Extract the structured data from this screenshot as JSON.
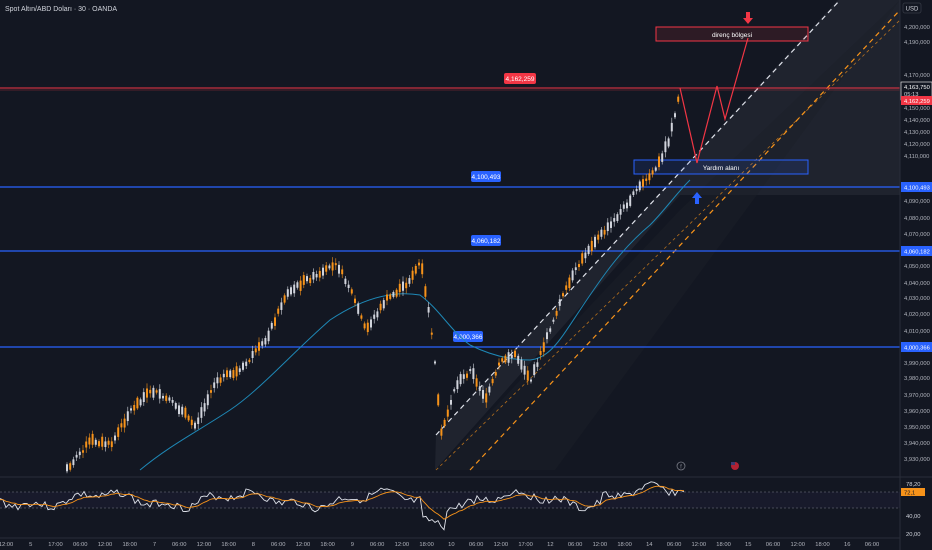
{
  "header": {
    "symbol_title": "Spot Altın/ABD Doları · 30 · OANDA",
    "currency_button": "USD"
  },
  "price_axis": {
    "ticks": [
      "4,200,000",
      "4,190,000",
      "4,170,000",
      "4,160,000",
      "4,150,000",
      "4,140,000",
      "4,130,000",
      "4,120,000",
      "4,110,000",
      "4,090,000",
      "4,080,000",
      "4,070,000",
      "4,050,000",
      "4,040,000",
      "4,030,000",
      "4,020,000",
      "4,010,000",
      "3,990,000",
      "3,980,000",
      "3,970,000",
      "3,960,000",
      "3,950,000",
      "3,940,000",
      "3,930,000"
    ],
    "current_price": "4,163,750",
    "countdown": "05:13",
    "level_red": "4,162,259",
    "level_blue_1": "4,100,493",
    "level_blue_2": "4,060,182",
    "level_blue_3": "4,000,366"
  },
  "time_axis": {
    "ticks": [
      "12:00",
      "5",
      "17:00",
      "06:00",
      "12:00",
      "18:00",
      "7",
      "06:00",
      "12:00",
      "18:00",
      "8",
      "06:00",
      "12:00",
      "18:00",
      "9",
      "06:00",
      "12:00",
      "18:00",
      "10",
      "06:00",
      "12:00",
      "17:00",
      "12",
      "06:00",
      "12:00",
      "18:00",
      "14",
      "06:00",
      "12:00",
      "18:00",
      "15",
      "06:00",
      "12:00",
      "18:00",
      "16",
      "06:00"
    ]
  },
  "annotations": {
    "resistance_label": "direnç bölgesi",
    "support_label": "Yardım alanı",
    "level_tag_red": "4,162,259",
    "level_tag_blue_1": "4,100,493",
    "level_tag_blue_2": "4,060,182",
    "level_tag_blue_3": "4,000,366"
  },
  "indicator_axis": {
    "ticks": [
      "78,20",
      "40,00",
      "20,00"
    ],
    "value_1": "72,1"
  },
  "colors": {
    "background": "#131722",
    "candle_up": "#d1d4dc",
    "candle_down": "#f7931a",
    "red_level": "#f23645",
    "blue_level": "#2962ff",
    "ma_line": "#1e88b6",
    "channel_lower": "#f7931a",
    "channel_upper": "#e0e3eb",
    "rsi_line": "#e0e3eb",
    "rsi_ma": "#f7931a"
  },
  "chart_data": {
    "type": "candlestick",
    "title": "Spot Altın/ABD Doları · 30 · OANDA",
    "y_range": [
      3930,
      4205
    ],
    "horizontal_levels": [
      4162.259,
      4100.493,
      4060.182,
      4000.366
    ],
    "zones": [
      {
        "label": "direnç bölgesi",
        "from": 4188,
        "to": 4198
      },
      {
        "label": "Yardım alanı",
        "from": 4112,
        "to": 4120
      }
    ]
  }
}
